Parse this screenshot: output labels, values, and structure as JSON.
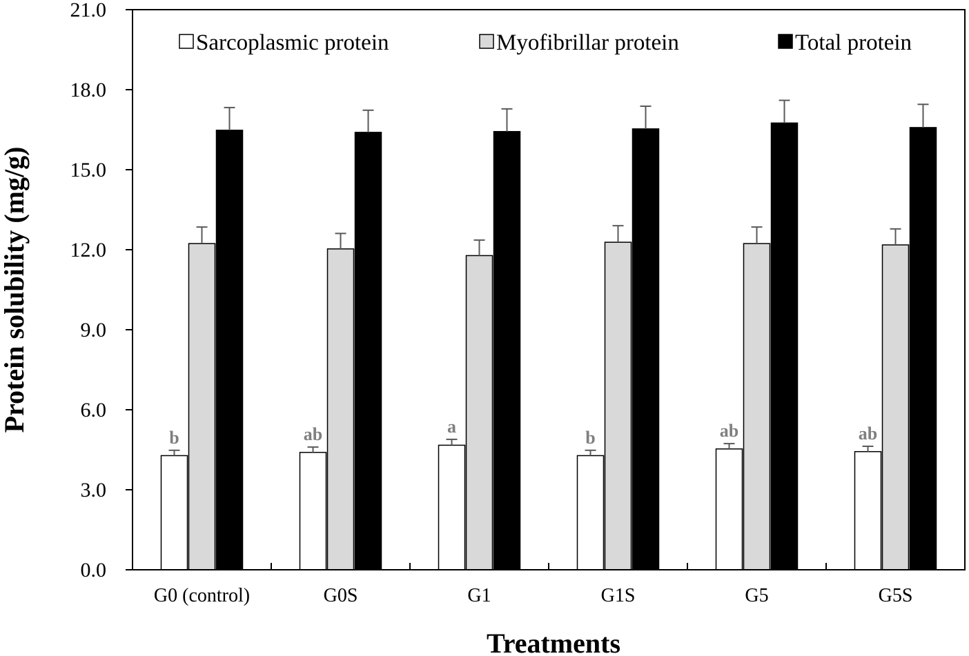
{
  "chart_data": {
    "type": "bar",
    "title": "",
    "xlabel": "Treatments",
    "ylabel": "Protein solubility (mg/g)",
    "ylim": [
      0,
      21
    ],
    "yticks": [
      "0.0",
      "3.0",
      "6.0",
      "9.0",
      "12.0",
      "15.0",
      "18.0",
      "21.0"
    ],
    "grid": false,
    "legend_position": "top",
    "categories": [
      "G0 (control)",
      "G0S",
      "G1",
      "G1S",
      "G5",
      "G5S"
    ],
    "series": [
      {
        "name": "Sarcoplasmic protein",
        "color": "#ffffff",
        "values": [
          4.28,
          4.4,
          4.67,
          4.28,
          4.53,
          4.43
        ],
        "errors": [
          0.2,
          0.2,
          0.22,
          0.2,
          0.2,
          0.2
        ],
        "labels": [
          "b",
          "ab",
          "a",
          "b",
          "ab",
          "ab"
        ]
      },
      {
        "name": "Myofibrillar protein",
        "color": "#d9d9d9",
        "values": [
          12.23,
          12.03,
          11.78,
          12.28,
          12.23,
          12.18
        ],
        "errors": [
          0.62,
          0.58,
          0.58,
          0.62,
          0.62,
          0.6
        ],
        "labels": [
          "",
          "",
          "",
          "",
          "",
          ""
        ]
      },
      {
        "name": "Total protein",
        "color": "#000000",
        "values": [
          16.48,
          16.4,
          16.43,
          16.53,
          16.75,
          16.58
        ],
        "errors": [
          0.85,
          0.83,
          0.85,
          0.85,
          0.85,
          0.87
        ],
        "labels": [
          "",
          "",
          "",
          "",
          "",
          ""
        ]
      }
    ]
  }
}
